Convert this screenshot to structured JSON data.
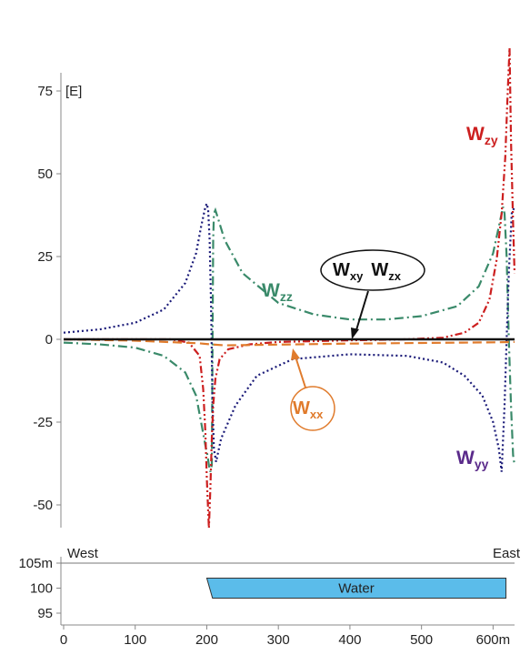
{
  "chart_data": [
    {
      "type": "line",
      "unit_label": "[E]",
      "xlim": [
        0,
        630
      ],
      "ylim": [
        -60,
        88
      ],
      "yticks": [
        75,
        50,
        25,
        0,
        -25,
        -50
      ],
      "series": [
        {
          "name": "Wzz",
          "name_main": "W",
          "name_sub": "zz",
          "color": "#3a8a6a",
          "dash": "10 4 2 4",
          "points": [
            [
              0,
              -1.0
            ],
            [
              50,
              -1.5
            ],
            [
              100,
              -2.5
            ],
            [
              140,
              -5
            ],
            [
              170,
              -10
            ],
            [
              185,
              -17
            ],
            [
              192,
              -25
            ],
            [
              198,
              -32
            ],
            [
              201,
              -35
            ],
            [
              203,
              -38
            ],
            [
              205,
              -40
            ],
            [
              207,
              -38
            ],
            [
              208,
              0
            ],
            [
              209,
              30
            ],
            [
              210,
              38
            ],
            [
              212,
              39
            ],
            [
              215,
              37
            ],
            [
              225,
              30
            ],
            [
              250,
              20
            ],
            [
              300,
              11
            ],
            [
              350,
              7.5
            ],
            [
              400,
              6
            ],
            [
              450,
              6
            ],
            [
              500,
              7
            ],
            [
              550,
              10
            ],
            [
              580,
              16
            ],
            [
              600,
              26
            ],
            [
              608,
              34
            ],
            [
              612,
              38
            ],
            [
              614,
              40
            ],
            [
              616,
              38
            ],
            [
              619,
              25
            ],
            [
              622,
              0
            ],
            [
              625,
              -20
            ],
            [
              628,
              -35
            ],
            [
              630,
              -38
            ]
          ]
        },
        {
          "name": "Wyy",
          "name_main": "W",
          "name_sub": "yy",
          "color": "#1a1a78",
          "dash": "2 3",
          "points": [
            [
              0,
              2
            ],
            [
              50,
              3
            ],
            [
              100,
              5
            ],
            [
              140,
              9
            ],
            [
              170,
              17
            ],
            [
              185,
              26
            ],
            [
              192,
              34
            ],
            [
              198,
              40
            ],
            [
              200,
              41
            ],
            [
              202,
              39
            ],
            [
              204,
              30
            ],
            [
              206,
              10
            ],
            [
              207,
              -5
            ],
            [
              208,
              -20
            ],
            [
              210,
              -33
            ],
            [
              213,
              -37
            ],
            [
              220,
              -30
            ],
            [
              240,
              -20
            ],
            [
              270,
              -11
            ],
            [
              320,
              -6
            ],
            [
              400,
              -4.5
            ],
            [
              480,
              -5
            ],
            [
              530,
              -7
            ],
            [
              560,
              -11
            ],
            [
              585,
              -17
            ],
            [
              600,
              -25
            ],
            [
              608,
              -33
            ],
            [
              612,
              -40
            ],
            [
              616,
              -20
            ],
            [
              619,
              0
            ],
            [
              622,
              20
            ],
            [
              626,
              38
            ],
            [
              630,
              40
            ]
          ]
        },
        {
          "name": "Wzy",
          "name_main": "W",
          "name_sub": "zy",
          "color": "#cc1f1f",
          "dash": "8 3 2 3 2 3",
          "points": [
            [
              0,
              0
            ],
            [
              100,
              0
            ],
            [
              150,
              0
            ],
            [
              175,
              -1
            ],
            [
              190,
              -5
            ],
            [
              195,
              -15
            ],
            [
              198,
              -28
            ],
            [
              200,
              -42
            ],
            [
              202,
              -52
            ],
            [
              203,
              -57
            ],
            [
              205,
              -45
            ],
            [
              207,
              -30
            ],
            [
              209,
              -20
            ],
            [
              212,
              -12
            ],
            [
              218,
              -6
            ],
            [
              230,
              -3
            ],
            [
              260,
              -1.5
            ],
            [
              300,
              -0.8
            ],
            [
              400,
              -0.3
            ],
            [
              480,
              0
            ],
            [
              530,
              0.5
            ],
            [
              560,
              2
            ],
            [
              580,
              5
            ],
            [
              595,
              12
            ],
            [
              605,
              24
            ],
            [
              612,
              38
            ],
            [
              617,
              55
            ],
            [
              620,
              72
            ],
            [
              623,
              88
            ],
            [
              625,
              60
            ],
            [
              628,
              35
            ],
            [
              630,
              20
            ]
          ]
        },
        {
          "name": "Wxx",
          "name_main": "W",
          "name_sub": "xx",
          "color": "#e07b2c",
          "dash": "10 5",
          "points": [
            [
              0,
              0
            ],
            [
              100,
              -0.4
            ],
            [
              190,
              -1.2
            ],
            [
              205,
              -1.5
            ],
            [
              225,
              -1.8
            ],
            [
              300,
              -1.6
            ],
            [
              400,
              -1.3
            ],
            [
              500,
              -1.1
            ],
            [
              600,
              -0.9
            ],
            [
              630,
              -0.8
            ]
          ]
        },
        {
          "name": "Wxy Wzx",
          "color": "#111111",
          "dash": "",
          "points": [
            [
              0,
              0
            ],
            [
              630,
              0
            ]
          ]
        }
      ],
      "labels": {
        "wzz": {
          "main": "W",
          "sub": "zz"
        },
        "wyy": {
          "main": "W",
          "sub": "yy"
        },
        "wzy": {
          "main": "W",
          "sub": "zy"
        },
        "wxx": {
          "main": "W",
          "sub": "xx"
        },
        "wxy_main": "W",
        "wxy_sub": "xy",
        "wzx_main": "W",
        "wzx_sub": "zx"
      },
      "colors": {
        "wxx_label": "#e07b2c",
        "wxx_arrow": "#e07b2c",
        "callout_border": "#111111"
      }
    },
    {
      "type": "area",
      "xlim": [
        0,
        630
      ],
      "xticks": [
        0,
        100,
        200,
        300,
        400,
        500,
        600
      ],
      "x_unit_suffix": "m",
      "yticks": [
        {
          "value": 105,
          "label": "105m"
        },
        {
          "value": 100,
          "label": "100"
        },
        {
          "value": 95,
          "label": "95"
        }
      ],
      "ylim": [
        92,
        107
      ],
      "left_label": "West",
      "right_label": "East",
      "surface_level": 105,
      "water": {
        "label": "Water",
        "color": "#5bbcea",
        "top": 102,
        "bottom": 98,
        "x_start_top": 200,
        "x_start_bottom": 208,
        "x_end": 618
      }
    }
  ]
}
